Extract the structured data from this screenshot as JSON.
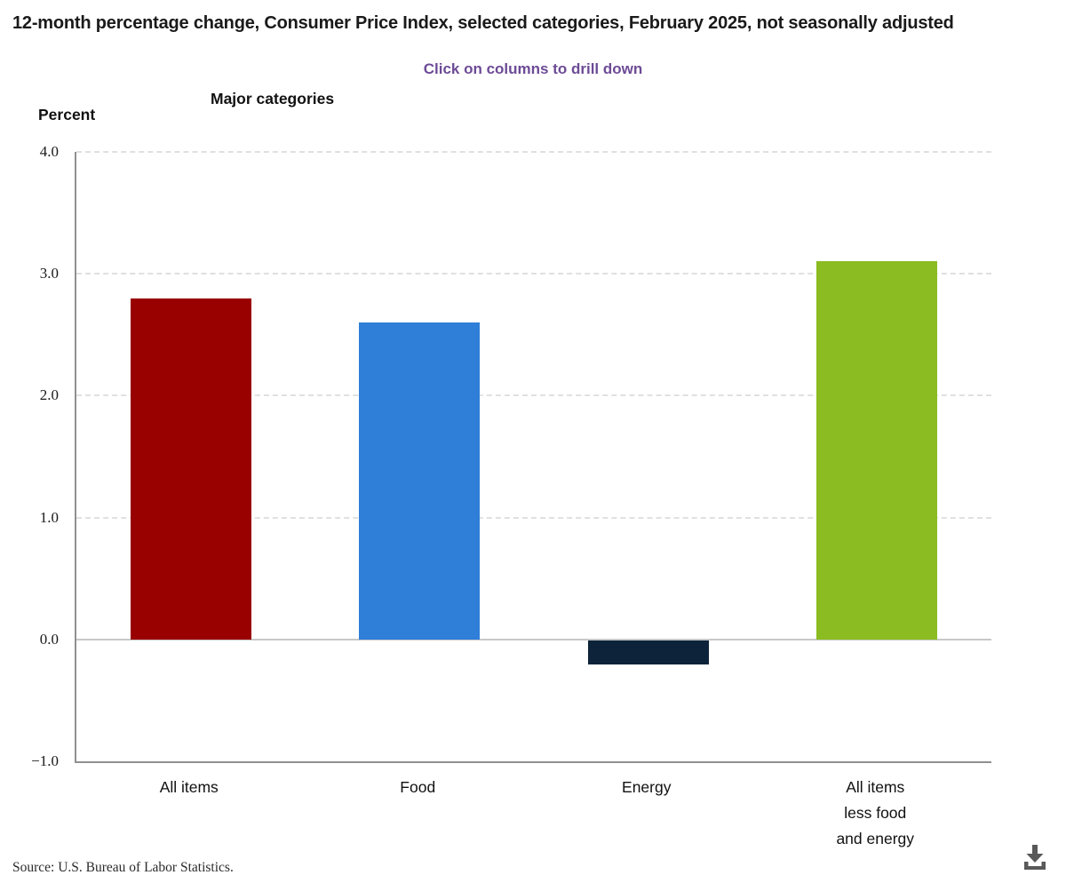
{
  "header": {
    "title": "12-month percentage change, Consumer Price Index, selected categories, February 2025, not seasonally adjusted",
    "drilldown_hint": "Click on columns to drill down",
    "group_label": "Major categories",
    "y_axis_label": "Percent"
  },
  "chart_data": {
    "type": "bar",
    "title": "12-month percentage change, Consumer Price Index, selected categories, February 2025, not seasonally adjusted",
    "categories": [
      "All items",
      "Food",
      "Energy",
      "All items\nless food\nand energy"
    ],
    "values": [
      2.8,
      2.6,
      -0.2,
      3.1
    ],
    "bar_colors": [
      "#990000",
      "#2f7ed8",
      "#0d233a",
      "#8bbc21"
    ],
    "xlabel": "Major categories",
    "ylabel": "Percent",
    "ylim": [
      -1.0,
      4.0
    ],
    "ytick_step": 1.0,
    "ytick_labels": [
      "4.0",
      "3.0",
      "2.0",
      "1.0",
      "0.0",
      "−1.0"
    ],
    "grid": "horizontal-dashed",
    "legend": "none"
  },
  "footer": {
    "source": "Source: U.S. Bureau of Labor Statistics.",
    "download_icon": "download-icon"
  },
  "colors": {
    "hint_purple": "#6d4b96",
    "axis_gray": "#909090",
    "gridline_gray": "#e0e0e0",
    "zero_line_gray": "#c8c8c8",
    "icon_gray": "#595959"
  }
}
